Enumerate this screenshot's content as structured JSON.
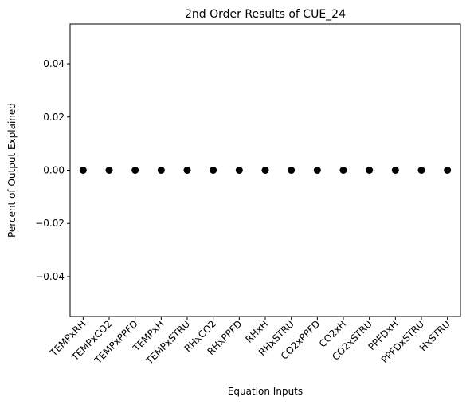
{
  "chart_data": {
    "type": "scatter",
    "title": "2nd Order Results of CUE_24",
    "xlabel": "Equation Inputs",
    "ylabel": "Percent of Output Explained",
    "categories": [
      "TEMPxRH",
      "TEMPxCO2",
      "TEMPxPPFD",
      "TEMPxH",
      "TEMPxSTRU",
      "RHxCO2",
      "RHxPPFD",
      "RHxH",
      "RHxSTRU",
      "CO2xPPFD",
      "CO2xH",
      "CO2xSTRU",
      "PPFDxH",
      "PPFDxSTRU",
      "HxSTRU"
    ],
    "values": [
      0,
      0,
      0,
      0,
      0,
      0,
      0,
      0,
      0,
      0,
      0,
      0,
      0,
      0,
      0
    ],
    "ylim": [
      -0.055,
      0.055
    ],
    "yticks": [
      -0.04,
      -0.02,
      0.0,
      0.02,
      0.04
    ],
    "ytick_labels": [
      "−0.04",
      "−0.02",
      "0.00",
      "0.02",
      "0.04"
    ],
    "marker_color": "#000000",
    "grid": false,
    "legend": "none"
  }
}
